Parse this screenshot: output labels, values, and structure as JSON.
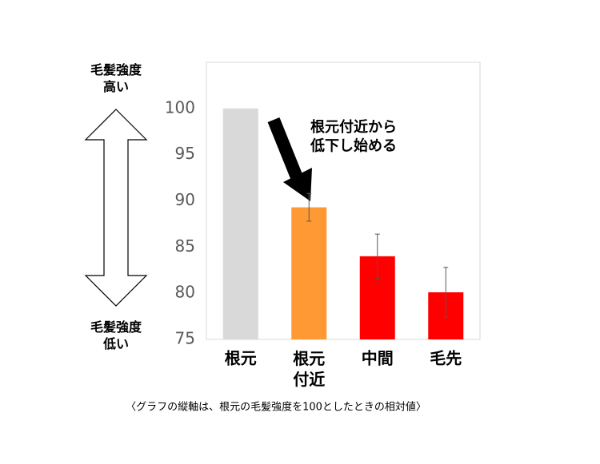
{
  "chart_data": {
    "type": "bar",
    "categories": [
      "根元",
      "根元\n付近",
      "中間",
      "毛先"
    ],
    "values": [
      100,
      89.3,
      84,
      80.1
    ],
    "errors": [
      null,
      1.5,
      2.4,
      2.7
    ],
    "colors": [
      "#d9d9d9",
      "#ff9933",
      "#ff0000",
      "#ff0000"
    ],
    "ylim": [
      75,
      105
    ],
    "yticks": [
      75,
      80,
      85,
      90,
      95,
      100
    ],
    "grid": false,
    "annotation": "根元付近から\n低下し始める",
    "top_label": "毛髪強度\n高い",
    "bottom_label": "毛髪強度\n低い",
    "footnote": "〈グラフの縦軸は、根元の毛髪強度を100としたときの相対値〉"
  }
}
